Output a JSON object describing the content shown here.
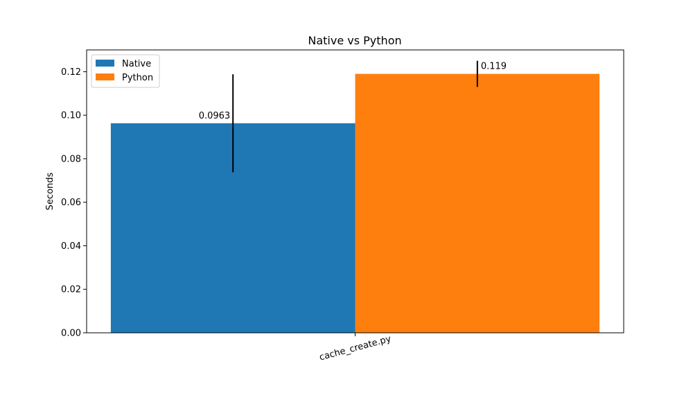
{
  "chart_data": {
    "type": "bar",
    "title": "Native vs Python",
    "xlabel": "",
    "ylabel": "Seconds",
    "categories": [
      "cache_create.py"
    ],
    "ylim": [
      0,
      0.13
    ],
    "yticks": [
      0.0,
      0.02,
      0.04,
      0.06,
      0.08,
      0.1,
      0.12
    ],
    "ytick_labels": [
      "0.00",
      "0.02",
      "0.04",
      "0.06",
      "0.08",
      "0.10",
      "0.12"
    ],
    "grid": false,
    "legend_position": "top-left",
    "series": [
      {
        "name": "Native",
        "values": [
          0.0963
        ],
        "errors": [
          0.0225
        ],
        "labels": [
          "0.0963"
        ],
        "color": "#1f77b4"
      },
      {
        "name": "Python",
        "values": [
          0.119
        ],
        "errors": [
          0.006
        ],
        "labels": [
          "0.119"
        ],
        "color": "#ff7f0e"
      }
    ]
  }
}
